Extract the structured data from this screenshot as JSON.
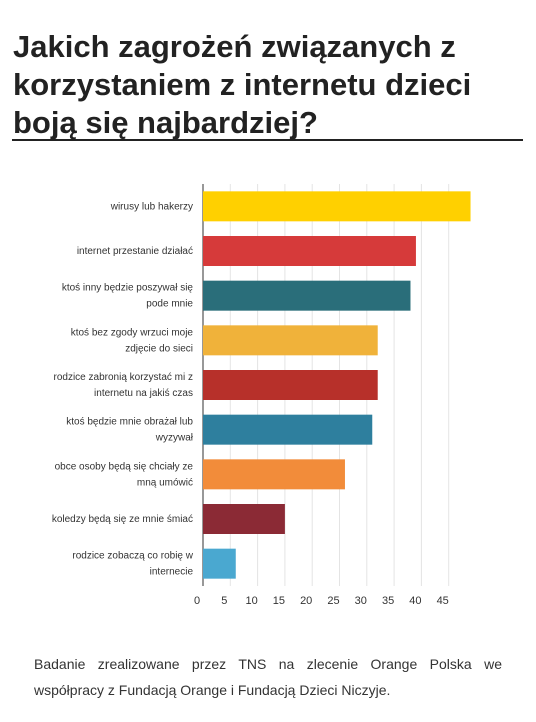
{
  "chart_data": {
    "type": "bar",
    "orientation": "horizontal",
    "title": "Jakich zagrożeń związanych z korzystaniem z internetu dzieci boją się najbardziej?",
    "categories": [
      "wirusy lub hakerzy",
      "internet przestanie działać",
      "ktoś inny będzie poszywał się pode mnie",
      "ktoś bez zgody wrzuci moje zdjęcie do sieci",
      "rodzice zabronią korzystać mi z internetu na jakiś czas",
      "ktoś będzie mnie obrażał lub wyzywał",
      "obce osoby będą się chciały ze mną umówić",
      "koledzy będą się ze mnie śmiać",
      "rodzice zobaczą co robię w internecie"
    ],
    "values": [
      49,
      39,
      38,
      32,
      32,
      31,
      26,
      15,
      6
    ],
    "colors": [
      "#ffd000",
      "#d63a3a",
      "#2a6e7a",
      "#f0b23a",
      "#b7302a",
      "#2e7f9e",
      "#f28c3a",
      "#8b2a35",
      "#4aa8d0"
    ],
    "xlim": [
      0,
      50
    ],
    "xticks": [
      0,
      5,
      10,
      15,
      20,
      25,
      30,
      35,
      40,
      45
    ],
    "grid": true
  },
  "footer": "Badanie zrealizowane przez TNS na zlecenie Orange Polska we współpracy z Fundacją Orange i Fundacją Dzieci Niczyje."
}
